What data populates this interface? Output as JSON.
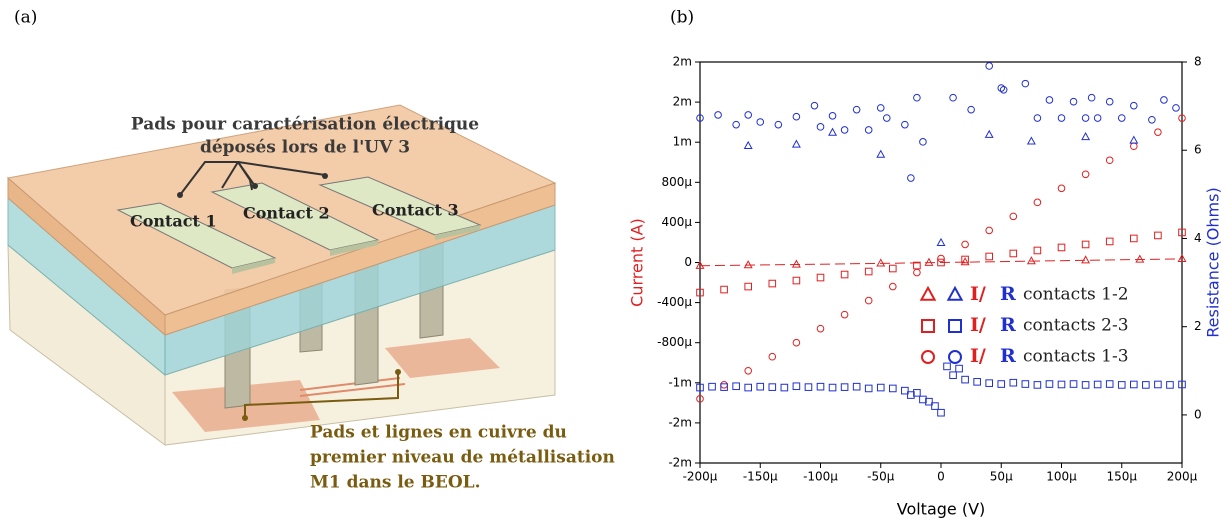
{
  "panel_labels": [
    "(a)",
    "(b)"
  ],
  "diagram": {
    "top_note": [
      "Pads pour caractérisation électrique",
      "déposés lors de l'UV 3"
    ],
    "contacts": [
      "Contact 1",
      "Contact 2",
      "Contact 3"
    ],
    "bottom_note": [
      "Pads et lignes en cuivre du",
      "premier niveau de métallisation",
      "M1 dans le BEOL."
    ]
  },
  "chart_data": {
    "type": "scatter",
    "xlabel": "Voltage (V)",
    "ylabel": "Current (A)",
    "y2label": "Resistance (Ohms)",
    "xlim": [
      -0.0002,
      0.0002
    ],
    "ylim": [
      -0.002,
      0.002
    ],
    "y2lim": [
      -1.09,
      8
    ],
    "xticks": [
      {
        "value": -0.0002,
        "label": "-200µ"
      },
      {
        "value": -0.00015,
        "label": "-150µ"
      },
      {
        "value": -0.0001,
        "label": "-100µ"
      },
      {
        "value": -5e-05,
        "label": "-50µ"
      },
      0,
      {
        "value": 5e-05,
        "label": "50µ"
      },
      {
        "value": 0.0001,
        "label": "100µ"
      },
      {
        "value": 0.00015,
        "label": "150µ"
      },
      {
        "value": 0.0002,
        "label": "200µ"
      }
    ],
    "yticks": [
      {
        "value": -0.002,
        "label": "-2m"
      },
      {
        "value": -0.0016,
        "label": "-2m"
      },
      {
        "value": -0.0012,
        "label": "-1m"
      },
      {
        "value": -0.0008,
        "label": "-800µ"
      },
      {
        "value": -0.0004,
        "label": "-400µ"
      },
      0,
      {
        "value": 0.0004,
        "label": "400µ"
      },
      {
        "value": 0.0008,
        "label": "800µ"
      },
      {
        "value": 0.0012,
        "label": "1m"
      },
      {
        "value": 0.0016,
        "label": "2m"
      },
      {
        "value": 0.002,
        "label": "2m"
      }
    ],
    "y2ticks": [
      0,
      2,
      4,
      6,
      8
    ],
    "legend": [
      {
        "i": "I/",
        "r": "R",
        "text": "contacts 1-2"
      },
      {
        "i": "I/",
        "r": "R",
        "text": "contacts 2-3"
      },
      {
        "i": "I/",
        "r": "R",
        "text": "contacts 1-3"
      }
    ],
    "series": [
      {
        "marker": "triangle",
        "color": "#e02020",
        "line": "dashed",
        "x": [
          -0.0002,
          -0.00016,
          -0.00012,
          -5e-05,
          -1e-05,
          2e-05,
          7.5e-05,
          0.00012,
          0.000165,
          0.0002
        ],
        "values": [
          -3.2e-05,
          -2.6e-05,
          -2e-05,
          -9e-06,
          -1.8e-06,
          3.6e-06,
          1.35e-05,
          2.2e-05,
          3e-05,
          3.6e-05
        ]
      },
      {
        "marker": "square",
        "color": "#e02020",
        "x": [
          -0.0002,
          -0.00018,
          -0.00016,
          -0.00014,
          -0.00012,
          -0.0001,
          -8e-05,
          -6e-05,
          -4e-05,
          -2e-05,
          0,
          2e-05,
          4e-05,
          6e-05,
          8e-05,
          0.0001,
          0.00012,
          0.00014,
          0.00016,
          0.00018,
          0.0002
        ],
        "values": [
          -0.0003,
          -0.00027,
          -0.00024,
          -0.00021,
          -0.00018,
          -0.00015,
          -0.00012,
          -9e-05,
          -6e-05,
          -3e-05,
          0,
          3e-05,
          6e-05,
          9e-05,
          0.00012,
          0.00015,
          0.00018,
          0.00021,
          0.00024,
          0.00027,
          0.0003
        ]
      },
      {
        "marker": "circle",
        "color": "#e02020",
        "x": [
          -0.0002,
          -0.00018,
          -0.00016,
          -0.00014,
          -0.00012,
          -0.0001,
          -8e-05,
          -6e-05,
          -4e-05,
          -2e-05,
          0,
          2e-05,
          4e-05,
          6e-05,
          8e-05,
          0.0001,
          0.00012,
          0.00014,
          0.00016,
          0.00018,
          0.0002
        ],
        "values": [
          -0.00136,
          -0.00122,
          -0.00108,
          -0.00094,
          -0.0008,
          -0.00066,
          -0.00052,
          -0.00038,
          -0.00024,
          -0.0001,
          4e-05,
          0.00018,
          0.00032,
          0.00046,
          0.0006,
          0.00074,
          0.00088,
          0.00102,
          0.00116,
          0.0013,
          0.00144
        ]
      },
      {
        "marker": "triangle",
        "color": "#2030d0",
        "axis": "y2",
        "x": [
          -0.00016,
          -0.00012,
          -9e-05,
          -5e-05,
          0,
          4e-05,
          7.5e-05,
          0.00012,
          0.00016
        ],
        "values": [
          6.1,
          6.13,
          6.4,
          5.9,
          3.9,
          6.35,
          6.2,
          6.3,
          6.22
        ]
      },
      {
        "marker": "square",
        "color": "#2030d0",
        "axis": "y2",
        "x": [
          -0.0002,
          -0.00019,
          -0.00018,
          -0.00017,
          -0.00016,
          -0.00015,
          -0.00014,
          -0.00013,
          -0.00012,
          -0.00011,
          -0.0001,
          -9e-05,
          -8e-05,
          -7e-05,
          -6e-05,
          -5e-05,
          -4e-05,
          -3e-05,
          -2.5e-05,
          -2e-05,
          -1.5e-05,
          -1e-05,
          -5e-06,
          0,
          5e-06,
          1e-05,
          1.5e-05,
          2e-05,
          3e-05,
          4e-05,
          5e-05,
          6e-05,
          7e-05,
          8e-05,
          9e-05,
          0.0001,
          0.00011,
          0.00012,
          0.00013,
          0.00014,
          0.00015,
          0.00016,
          0.00017,
          0.00018,
          0.00019,
          0.0002
        ],
        "values": [
          0.62,
          0.64,
          0.63,
          0.65,
          0.62,
          0.64,
          0.63,
          0.62,
          0.65,
          0.63,
          0.64,
          0.62,
          0.63,
          0.64,
          0.6,
          0.62,
          0.6,
          0.55,
          0.45,
          0.5,
          0.35,
          0.3,
          0.2,
          0.05,
          1.1,
          0.9,
          1.05,
          0.8,
          0.75,
          0.72,
          0.7,
          0.73,
          0.7,
          0.68,
          0.7,
          0.69,
          0.7,
          0.68,
          0.69,
          0.7,
          0.68,
          0.69,
          0.68,
          0.69,
          0.68,
          0.69
        ]
      },
      {
        "marker": "circle",
        "color": "#2030d0",
        "axis": "y2",
        "x": [
          -0.0002,
          -0.000185,
          -0.00017,
          -0.00016,
          -0.00015,
          -0.000135,
          -0.00012,
          -0.000105,
          -0.0001,
          -9e-05,
          -8e-05,
          -7e-05,
          -6e-05,
          -5e-05,
          -4.5e-05,
          -3e-05,
          -2.5e-05,
          -2e-05,
          -1.5e-05,
          1e-05,
          2.5e-05,
          4e-05,
          5e-05,
          5.2e-05,
          7e-05,
          8e-05,
          9e-05,
          0.0001,
          0.00011,
          0.00012,
          0.000125,
          0.00013,
          0.00014,
          0.00015,
          0.00016,
          0.000175,
          0.000185,
          0.000195
        ],
        "values": [
          6.73,
          6.8,
          6.58,
          6.8,
          6.64,
          6.58,
          6.76,
          7.01,
          6.53,
          6.78,
          6.46,
          6.92,
          6.46,
          6.96,
          6.73,
          6.58,
          5.37,
          7.19,
          6.19,
          7.19,
          6.92,
          7.91,
          7.41,
          7.37,
          7.51,
          6.73,
          7.14,
          6.73,
          7.1,
          6.73,
          7.19,
          6.73,
          7.1,
          6.73,
          7.01,
          6.69,
          7.14,
          6.96
        ]
      }
    ]
  }
}
